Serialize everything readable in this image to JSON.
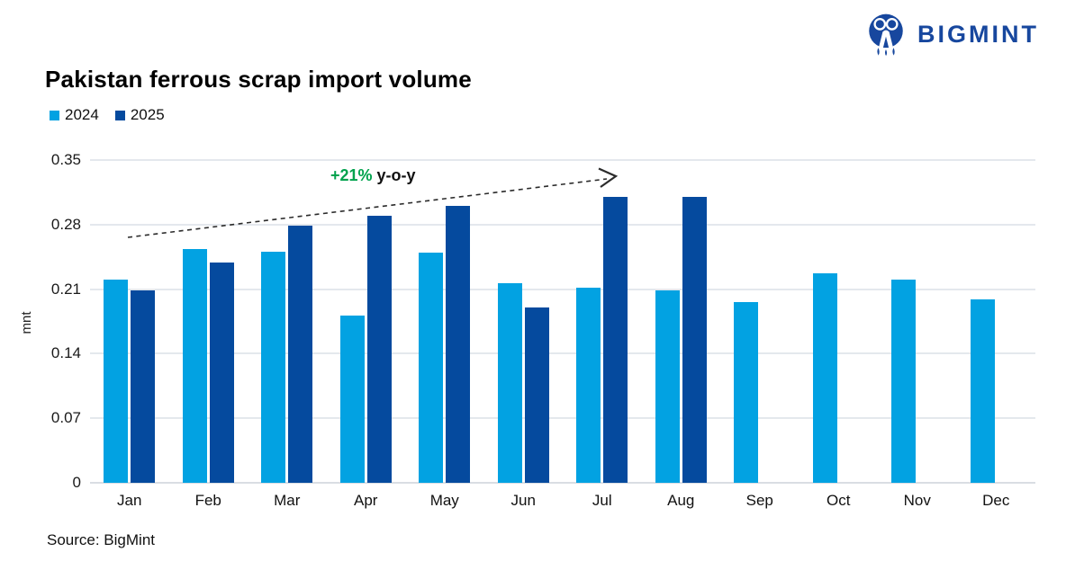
{
  "logo": {
    "text": "BIGMINT",
    "color": "#17479E"
  },
  "title": "Pakistan ferrous scrap import volume",
  "legend": [
    {
      "label": "2024",
      "color": "#02A2E2"
    },
    {
      "label": "2025",
      "color": "#054A9E"
    }
  ],
  "annotation": {
    "highlight": "+21%",
    "rest": " y-o-y",
    "highlight_color": "#00A24D"
  },
  "source": "Source: BigMint",
  "chart_data": {
    "type": "bar",
    "title": "Pakistan ferrous scrap import volume",
    "xlabel": "",
    "ylabel": "mnt",
    "ylim": [
      0,
      0.35
    ],
    "yticks": [
      0,
      0.07,
      0.14,
      0.21,
      0.28,
      0.35
    ],
    "ytick_labels": [
      "0",
      "0.07",
      "0.14",
      "0.21",
      "0.28",
      "0.35"
    ],
    "grid": true,
    "legend_position": "top-left",
    "annotation": "+21% y-o-y",
    "categories": [
      "Jan",
      "Feb",
      "Mar",
      "Apr",
      "May",
      "Jun",
      "Jul",
      "Aug",
      "Sep",
      "Oct",
      "Nov",
      "Dec"
    ],
    "series": [
      {
        "name": "2024",
        "color": "#02A2E2",
        "values": [
          0.22,
          0.253,
          0.251,
          0.181,
          0.25,
          0.216,
          0.212,
          0.209,
          0.196,
          0.227,
          0.22,
          0.199
        ]
      },
      {
        "name": "2025",
        "color": "#054A9E",
        "values": [
          0.209,
          0.239,
          0.279,
          0.29,
          0.3,
          0.19,
          0.31,
          0.31,
          null,
          null,
          null,
          null
        ]
      }
    ]
  }
}
